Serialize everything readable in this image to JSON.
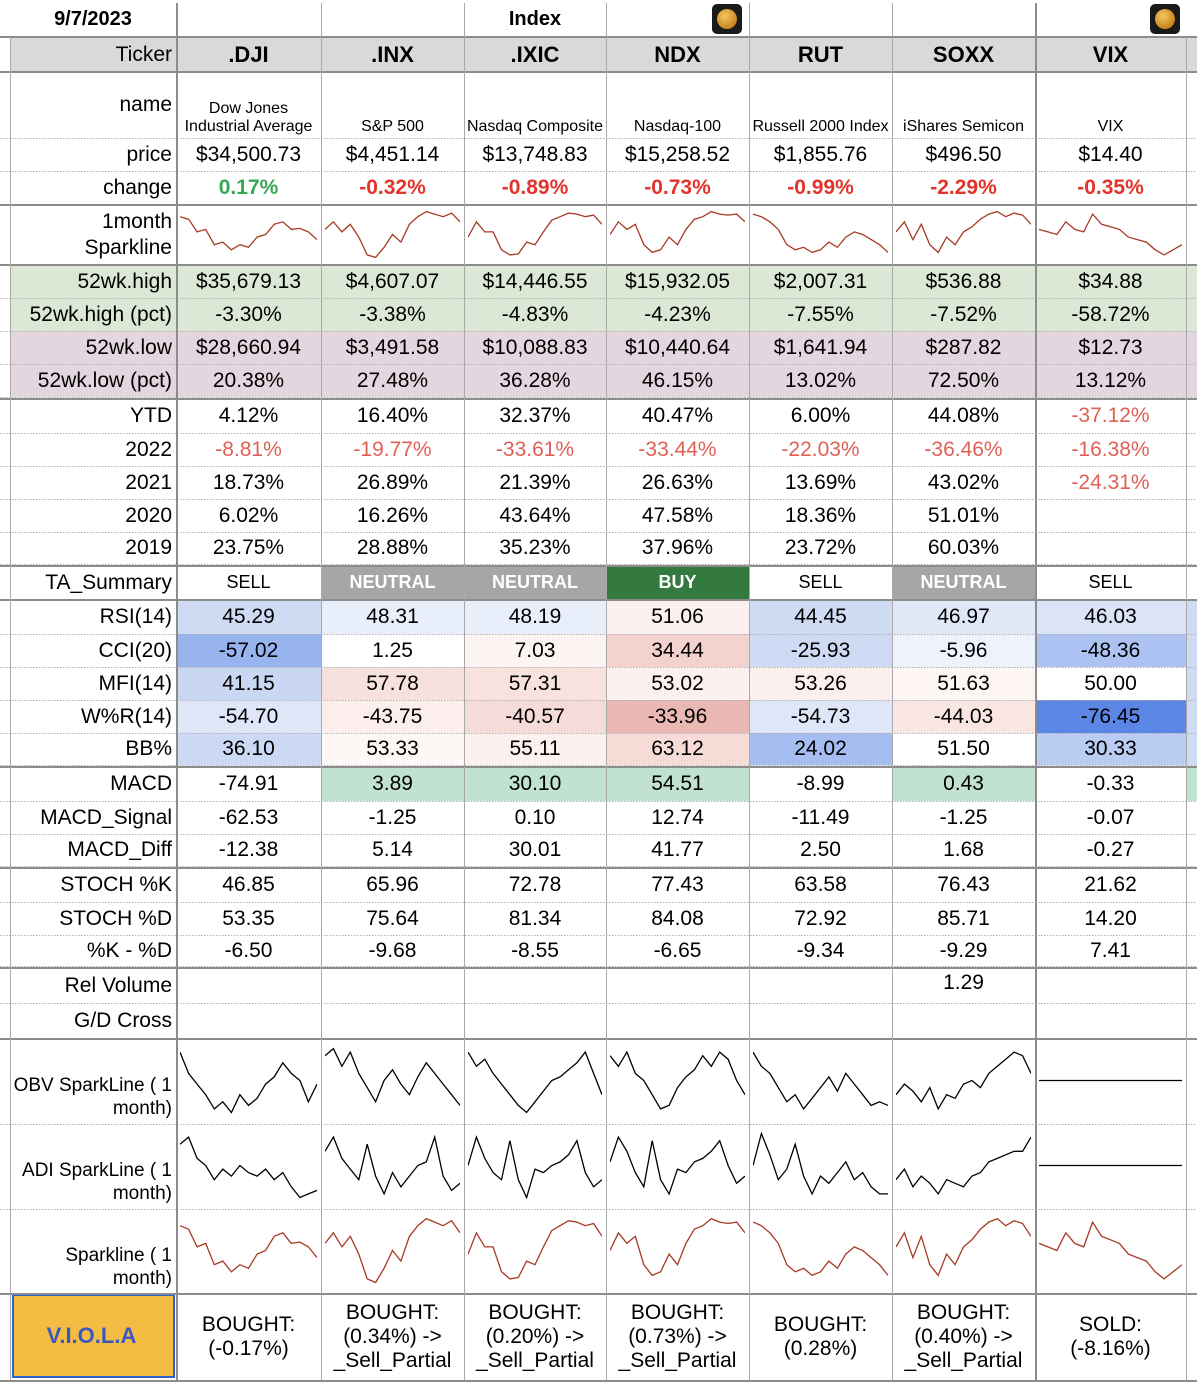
{
  "header": {
    "date": "9/7/2023",
    "title": "Index",
    "ticker_label": "Ticker"
  },
  "tickers": [
    ".DJI",
    ".INX",
    ".IXIC",
    "NDX",
    "RUT",
    "SOXX",
    "VIX"
  ],
  "colors": {
    "green_text": "#36a853",
    "red_text": "#e2342a",
    "soft_red_text": "#e06055",
    "spark_red": "#a63a25",
    "neutral_bg": "#a6a6a6",
    "buy_bg": "#34793e",
    "high_bg": "#dbe8d5",
    "low_bg": "#e4d6de",
    "macd_green_bg": "#c1e1d1",
    "viola_bg": "#f2bd42",
    "viola_text": "#3c58c0"
  },
  "icons": [
    "pumpkin-icon",
    "pumpkin-icon"
  ],
  "rows": {
    "name": {
      "label": "name",
      "values": [
        "Dow Jones Industrial Average",
        "S&P 500",
        "Nasdaq Composite",
        "Nasdaq-100",
        "Russell 2000 Index",
        "iShares Semicon",
        "VIX"
      ]
    },
    "price": {
      "label": "price",
      "values": [
        "$34,500.73",
        "$4,451.14",
        "$13,748.83",
        "$15,258.52",
        "$1,855.76",
        "$496.50",
        "$14.40"
      ]
    },
    "change": {
      "label": "change",
      "values": [
        "0.17%",
        "-0.32%",
        "-0.89%",
        "-0.73%",
        "-0.99%",
        "-2.29%",
        "-0.35%"
      ]
    },
    "spark1": {
      "label": "1month Sparkline"
    },
    "high": {
      "label": "52wk.high",
      "values": [
        "$35,679.13",
        "$4,607.07",
        "$14,446.55",
        "$15,932.05",
        "$2,007.31",
        "$536.88",
        "$34.88"
      ]
    },
    "high_pct": {
      "label": "52wk.high (pct)",
      "values": [
        "-3.30%",
        "-3.38%",
        "-4.83%",
        "-4.23%",
        "-7.55%",
        "-7.52%",
        "-58.72%"
      ]
    },
    "low": {
      "label": "52wk.low",
      "values": [
        "$28,660.94",
        "$3,491.58",
        "$10,088.83",
        "$10,440.64",
        "$1,641.94",
        "$287.82",
        "$12.73"
      ]
    },
    "low_pct": {
      "label": "52wk.low (pct)",
      "values": [
        "20.38%",
        "27.48%",
        "36.28%",
        "46.15%",
        "13.02%",
        "72.50%",
        "13.12%"
      ]
    },
    "ytd": {
      "label": "YTD",
      "values": [
        "4.12%",
        "16.40%",
        "32.37%",
        "40.47%",
        "6.00%",
        "44.08%",
        "-37.12%"
      ]
    },
    "y2022": {
      "label": "2022",
      "values": [
        "-8.81%",
        "-19.77%",
        "-33.61%",
        "-33.44%",
        "-22.03%",
        "-36.46%",
        "-16.38%"
      ]
    },
    "y2021": {
      "label": "2021",
      "values": [
        "18.73%",
        "26.89%",
        "21.39%",
        "26.63%",
        "13.69%",
        "43.02%",
        "-24.31%"
      ]
    },
    "y2020": {
      "label": "2020",
      "values": [
        "6.02%",
        "16.26%",
        "43.64%",
        "47.58%",
        "18.36%",
        "51.01%",
        ""
      ]
    },
    "y2019": {
      "label": "2019",
      "values": [
        "23.75%",
        "28.88%",
        "35.23%",
        "37.96%",
        "23.72%",
        "60.03%",
        ""
      ]
    },
    "ta": {
      "label": "TA_Summary",
      "values": [
        "SELL",
        "NEUTRAL",
        "NEUTRAL",
        "BUY",
        "SELL",
        "NEUTRAL",
        "SELL"
      ]
    },
    "rsi": {
      "label": "RSI(14)",
      "values": [
        "45.29",
        "48.31",
        "48.19",
        "51.06",
        "44.45",
        "46.97",
        "46.03"
      ]
    },
    "cci": {
      "label": "CCI(20)",
      "values": [
        "-57.02",
        "1.25",
        "7.03",
        "34.44",
        "-25.93",
        "-5.96",
        "-48.36"
      ]
    },
    "mfi": {
      "label": "MFI(14)",
      "values": [
        "41.15",
        "57.78",
        "57.31",
        "53.02",
        "53.26",
        "51.63",
        "50.00"
      ]
    },
    "wr": {
      "label": "W%R(14)",
      "values": [
        "-54.70",
        "-43.75",
        "-40.57",
        "-33.96",
        "-54.73",
        "-44.03",
        "-76.45"
      ]
    },
    "bb": {
      "label": "BB%",
      "values": [
        "36.10",
        "53.33",
        "55.11",
        "63.12",
        "24.02",
        "51.50",
        "30.33"
      ]
    },
    "macd": {
      "label": "MACD",
      "values": [
        "-74.91",
        "3.89",
        "30.10",
        "54.51",
        "-8.99",
        "0.43",
        "-0.33"
      ]
    },
    "macd_sig": {
      "label": "MACD_Signal",
      "values": [
        "-62.53",
        "-1.25",
        "0.10",
        "12.74",
        "-11.49",
        "-1.25",
        "-0.07"
      ]
    },
    "macd_diff": {
      "label": "MACD_Diff",
      "values": [
        "-12.38",
        "5.14",
        "30.01",
        "41.77",
        "2.50",
        "1.68",
        "-0.27"
      ]
    },
    "stk": {
      "label": "STOCH %K",
      "values": [
        "46.85",
        "65.96",
        "72.78",
        "77.43",
        "63.58",
        "76.43",
        "21.62"
      ]
    },
    "std": {
      "label": "STOCH %D",
      "values": [
        "53.35",
        "75.64",
        "81.34",
        "84.08",
        "72.92",
        "85.71",
        "14.20"
      ]
    },
    "kd": {
      "label": "%K - %D",
      "values": [
        "-6.50",
        "-9.68",
        "-8.55",
        "-6.65",
        "-9.34",
        "-9.29",
        "7.41"
      ]
    },
    "relvol": {
      "label": "Rel Volume",
      "values": [
        "",
        "",
        "",
        "",
        "",
        "1.29",
        ""
      ]
    },
    "gd": {
      "label": "G/D Cross",
      "values": [
        "",
        "",
        "",
        "",
        "",
        "",
        ""
      ]
    },
    "obv": {
      "label": "OBV SparkLine ( 1 month)"
    },
    "adi": {
      "label": "ADI SparkLine ( 1 month)"
    },
    "spark2": {
      "label": "Sparkline ( 1 month)"
    },
    "viola": {
      "label": "V.I.O.L.A",
      "values": [
        "BOUGHT: (-0.17%)",
        "BOUGHT: (0.34%) -> _Sell_Partial",
        "BOUGHT: (0.20%) -> _Sell_Partial",
        "BOUGHT: (0.73%) -> _Sell_Partial",
        "BOUGHT: (0.28%)",
        "BOUGHT: (0.40%) -> _Sell_Partial",
        "SOLD: (-8.16%)"
      ]
    }
  },
  "sparklines": {
    "price_1m": [
      [
        0.85,
        0.8,
        0.55,
        0.6,
        0.3,
        0.35,
        0.2,
        0.3,
        0.25,
        0.45,
        0.5,
        0.7,
        0.75,
        0.6,
        0.62,
        0.55,
        0.4
      ],
      [
        0.6,
        0.75,
        0.55,
        0.7,
        0.45,
        0.1,
        0.05,
        0.25,
        0.5,
        0.35,
        0.7,
        0.85,
        0.95,
        0.9,
        0.85,
        0.92,
        0.75
      ],
      [
        0.45,
        0.75,
        0.55,
        0.55,
        0.2,
        0.1,
        0.12,
        0.35,
        0.3,
        0.55,
        0.78,
        0.85,
        0.92,
        0.9,
        0.85,
        0.88,
        0.7
      ],
      [
        0.5,
        0.75,
        0.6,
        0.7,
        0.3,
        0.15,
        0.2,
        0.45,
        0.3,
        0.6,
        0.8,
        0.85,
        0.95,
        0.9,
        0.88,
        0.9,
        0.75
      ],
      [
        0.9,
        0.85,
        0.75,
        0.6,
        0.3,
        0.2,
        0.25,
        0.15,
        0.2,
        0.35,
        0.25,
        0.45,
        0.55,
        0.5,
        0.4,
        0.3,
        0.15
      ],
      [
        0.55,
        0.75,
        0.4,
        0.7,
        0.3,
        0.15,
        0.45,
        0.3,
        0.55,
        0.65,
        0.8,
        0.9,
        0.95,
        0.85,
        0.92,
        0.88,
        0.7
      ],
      [
        0.6,
        0.55,
        0.5,
        0.75,
        0.6,
        0.55,
        0.9,
        0.7,
        0.65,
        0.6,
        0.45,
        0.4,
        0.35,
        0.2,
        0.1,
        0.2,
        0.3
      ]
    ],
    "obv_1m": [
      [
        0.9,
        0.6,
        0.45,
        0.3,
        0.1,
        0.2,
        0.05,
        0.3,
        0.15,
        0.25,
        0.45,
        0.55,
        0.75,
        0.6,
        0.5,
        0.2,
        0.45
      ],
      [
        0.85,
        0.95,
        0.7,
        0.9,
        0.6,
        0.4,
        0.2,
        0.5,
        0.65,
        0.45,
        0.3,
        0.55,
        0.75,
        0.6,
        0.45,
        0.3,
        0.15
      ],
      [
        0.9,
        0.7,
        0.8,
        0.6,
        0.45,
        0.3,
        0.15,
        0.05,
        0.2,
        0.35,
        0.5,
        0.55,
        0.65,
        0.75,
        0.9,
        0.6,
        0.3
      ],
      [
        0.85,
        0.7,
        0.9,
        0.6,
        0.5,
        0.3,
        0.1,
        0.15,
        0.4,
        0.55,
        0.65,
        0.85,
        0.7,
        0.9,
        0.8,
        0.5,
        0.3
      ],
      [
        0.9,
        0.7,
        0.6,
        0.4,
        0.2,
        0.3,
        0.1,
        0.25,
        0.4,
        0.55,
        0.35,
        0.6,
        0.45,
        0.3,
        0.15,
        0.2,
        0.15
      ],
      [
        0.3,
        0.45,
        0.35,
        0.2,
        0.4,
        0.1,
        0.3,
        0.25,
        0.45,
        0.5,
        0.4,
        0.6,
        0.7,
        0.8,
        0.9,
        0.85,
        0.6
      ],
      [
        0.5,
        0.5,
        0.5,
        0.5,
        0.5,
        0.5,
        0.5,
        0.5,
        0.5,
        0.5,
        0.5,
        0.5,
        0.5,
        0.5,
        0.5,
        0.5,
        0.5
      ]
    ],
    "adi_1m": [
      [
        0.8,
        0.9,
        0.6,
        0.5,
        0.3,
        0.45,
        0.35,
        0.5,
        0.4,
        0.35,
        0.45,
        0.3,
        0.4,
        0.2,
        0.05,
        0.1,
        0.15
      ],
      [
        0.7,
        0.9,
        0.6,
        0.45,
        0.3,
        0.8,
        0.35,
        0.1,
        0.4,
        0.2,
        0.35,
        0.5,
        0.55,
        0.9,
        0.35,
        0.15,
        0.25
      ],
      [
        0.5,
        0.9,
        0.6,
        0.4,
        0.3,
        0.85,
        0.3,
        0.05,
        0.45,
        0.4,
        0.5,
        0.55,
        0.65,
        0.85,
        0.4,
        0.2,
        0.3
      ],
      [
        0.55,
        0.9,
        0.7,
        0.4,
        0.2,
        0.85,
        0.3,
        0.1,
        0.45,
        0.4,
        0.55,
        0.6,
        0.7,
        0.85,
        0.5,
        0.25,
        0.35
      ],
      [
        0.5,
        0.95,
        0.65,
        0.3,
        0.45,
        0.8,
        0.35,
        0.1,
        0.35,
        0.25,
        0.4,
        0.55,
        0.3,
        0.4,
        0.2,
        0.1,
        0.1
      ],
      [
        0.3,
        0.45,
        0.2,
        0.35,
        0.25,
        0.1,
        0.3,
        0.25,
        0.2,
        0.35,
        0.4,
        0.55,
        0.6,
        0.65,
        0.7,
        0.7,
        0.9
      ],
      [
        0.5,
        0.5,
        0.5,
        0.5,
        0.5,
        0.5,
        0.5,
        0.5,
        0.5,
        0.5,
        0.5,
        0.5,
        0.5,
        0.5,
        0.5,
        0.5,
        0.5
      ]
    ]
  }
}
